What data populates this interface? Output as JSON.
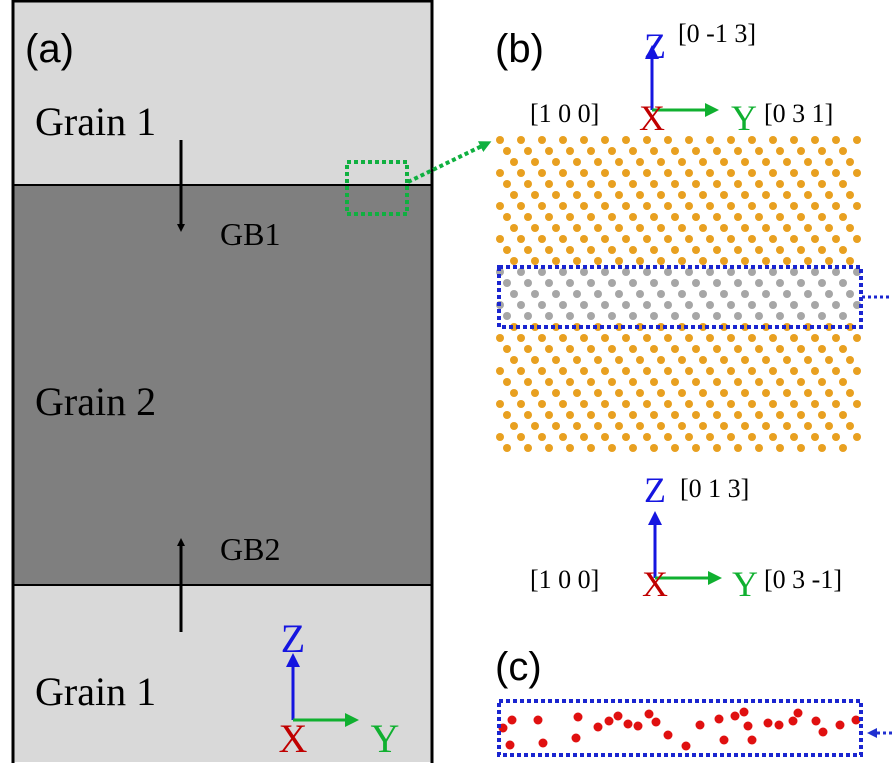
{
  "panel_a": {
    "label": "(a)",
    "top_grain": "Grain 1",
    "gb1": "GB1",
    "middle_grain": "Grain 2",
    "gb2": "GB2",
    "bottom_grain": "Grain 1",
    "axes": {
      "z": "Z",
      "x": "X",
      "y": "Y"
    }
  },
  "panel_b": {
    "label": "(b)",
    "top_axes": {
      "z": "Z",
      "z_dir": "[0 -1 3]",
      "x_dir": "[1 0 0]",
      "x": "X",
      "y": "Y",
      "y_dir": "[0 3 1]"
    },
    "bottom_axes": {
      "z": "Z",
      "z_dir": "[0 1 3]",
      "x_dir": "[1 0 0]",
      "x": "X",
      "y": "Y",
      "y_dir": "[0 3 -1]"
    }
  },
  "panel_c": {
    "label": "(c)"
  }
}
